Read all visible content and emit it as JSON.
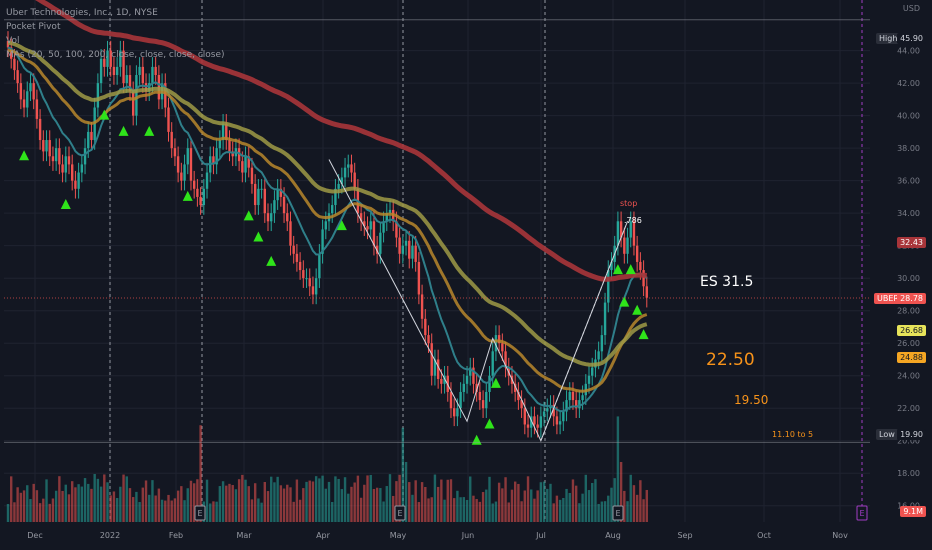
{
  "legend": {
    "title": "Uber Technologies, Inc., 1D, NYSE",
    "indicator1": "Pocket Pivot",
    "indicator2": "Vol",
    "indicator3": "MAs (20, 50, 100, 200, close, close, close, close)"
  },
  "colors": {
    "background": "#131722",
    "up": "#26a69a",
    "down": "#ef5350",
    "ma20": "#2f7f8a",
    "ma50": "#b8872b",
    "ma100": "#9f9a45",
    "ma200": "#a8353a",
    "pivot": "#2fe41a"
  },
  "price_axis": {
    "currency": "USD",
    "ticks": [
      "44.00",
      "42.00",
      "40.00",
      "38.00",
      "36.00",
      "34.00",
      "32.00",
      "30.00",
      "28.00",
      "26.00",
      "24.00",
      "22.00",
      "20.00",
      "18.00",
      "16.00"
    ]
  },
  "price_labels": {
    "high": {
      "label": "High",
      "value": "45.90"
    },
    "low": {
      "label": "Low",
      "value": "19.90"
    },
    "ticker": {
      "label": "UBER",
      "value": "28.78"
    },
    "ma200": "32.43",
    "ma100": "26.68",
    "ma50": "24.88",
    "volume": "9.1M"
  },
  "annotations": {
    "es": "ES 31.5",
    "t1": "22.50",
    "t2": "19.50",
    "range": "11.10 to 5",
    "stop": "stop",
    "fib": ".786"
  },
  "chart_data": {
    "type": "candlestick",
    "ticker": "UBER",
    "interval": "1D",
    "x_labels": [
      "Dec",
      "2022",
      "Feb",
      "Mar",
      "Apr",
      "May",
      "Jun",
      "Jul",
      "Aug",
      "Sep",
      "Oct",
      "Nov"
    ],
    "ylim": [
      15,
      46.5
    ],
    "closes": [
      44.2,
      43.5,
      42.8,
      42.0,
      41.0,
      40.5,
      41.5,
      42.0,
      41.0,
      39.8,
      38.5,
      37.8,
      38.5,
      37.5,
      37.2,
      38.0,
      37.0,
      36.5,
      37.5,
      37.0,
      36.0,
      35.5,
      36.5,
      37.0,
      38.0,
      39.0,
      38.5,
      40.5,
      42.0,
      43.5,
      43.0,
      44.0,
      43.0,
      42.5,
      43.0,
      44.0,
      42.0,
      42.5,
      41.5,
      40.0,
      42.5,
      43.0,
      42.0,
      41.5,
      42.0,
      43.0,
      42.5,
      41.0,
      42.0,
      40.5,
      39.0,
      38.0,
      37.5,
      36.5,
      36.0,
      37.0,
      38.0,
      36.0,
      35.5,
      35.0,
      34.5,
      35.5,
      36.5,
      37.5,
      37.0,
      38.0,
      38.5,
      39.5,
      38.5,
      37.8,
      37.5,
      38.0,
      37.2,
      36.5,
      37.5,
      36.8,
      35.8,
      34.5,
      35.5,
      35.5,
      34.0,
      33.5,
      34.0,
      34.8,
      35.5,
      35.0,
      34.0,
      33.5,
      32.0,
      31.5,
      31.0,
      30.5,
      30.0,
      30.0,
      29.5,
      29.0,
      30.0,
      31.5,
      33.0,
      33.5,
      34.0,
      34.5,
      35.5,
      35.8,
      36.2,
      36.8,
      37.0,
      36.5,
      35.5,
      34.0,
      33.5,
      33.2,
      33.0,
      33.5,
      32.0,
      31.5,
      32.8,
      33.5,
      34.0,
      34.2,
      33.5,
      32.5,
      31.5,
      32.0,
      32.3,
      31.2,
      32.0,
      31.0,
      29.0,
      27.5,
      26.5,
      26.0,
      24.0,
      25.0,
      23.8,
      23.5,
      24.0,
      23.0,
      22.0,
      21.5,
      22.0,
      23.0,
      23.5,
      24.0,
      24.5,
      23.5,
      23.0,
      22.5,
      22.0,
      23.0,
      24.0,
      25.5,
      26.5,
      26.0,
      25.5,
      24.5,
      24.0,
      23.5,
      23.0,
      22.5,
      22.0,
      21.0,
      20.8,
      21.5,
      21.0,
      20.8,
      21.5,
      21.8,
      22.0,
      22.2,
      21.5,
      21.0,
      21.2,
      21.8,
      22.5,
      23.0,
      22.5,
      22.0,
      22.5,
      22.8,
      23.5,
      24.0,
      24.5,
      25.0,
      25.5,
      26.5,
      28.5,
      30.5,
      31.0,
      32.0,
      33.5,
      32.5,
      31.5,
      32.5,
      33.5,
      32.0,
      31.0,
      30.5,
      29.5,
      28.8
    ],
    "pocket_pivot_days": [
      5,
      18,
      30,
      36,
      44,
      56,
      75,
      78,
      82,
      104,
      146,
      150,
      152,
      190,
      192,
      194,
      196,
      198,
      200
    ]
  }
}
